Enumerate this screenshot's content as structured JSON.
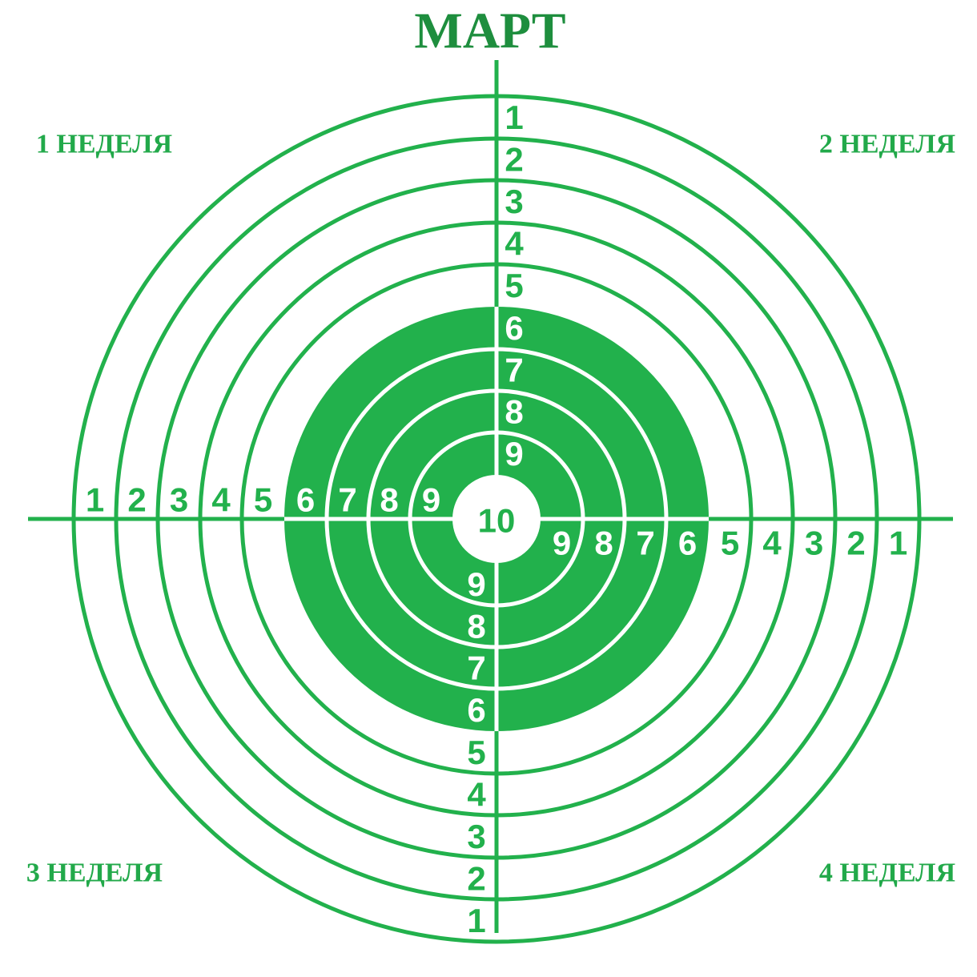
{
  "title": "МАРТ",
  "weeks": [
    "1 НЕДЕЛЯ",
    "2 НЕДЕЛЯ",
    "3 НЕДЕЛЯ",
    "4 НЕДЕЛЯ"
  ],
  "rings": [
    "1",
    "2",
    "3",
    "4",
    "5",
    "6",
    "7",
    "8",
    "9"
  ],
  "center": "10"
}
